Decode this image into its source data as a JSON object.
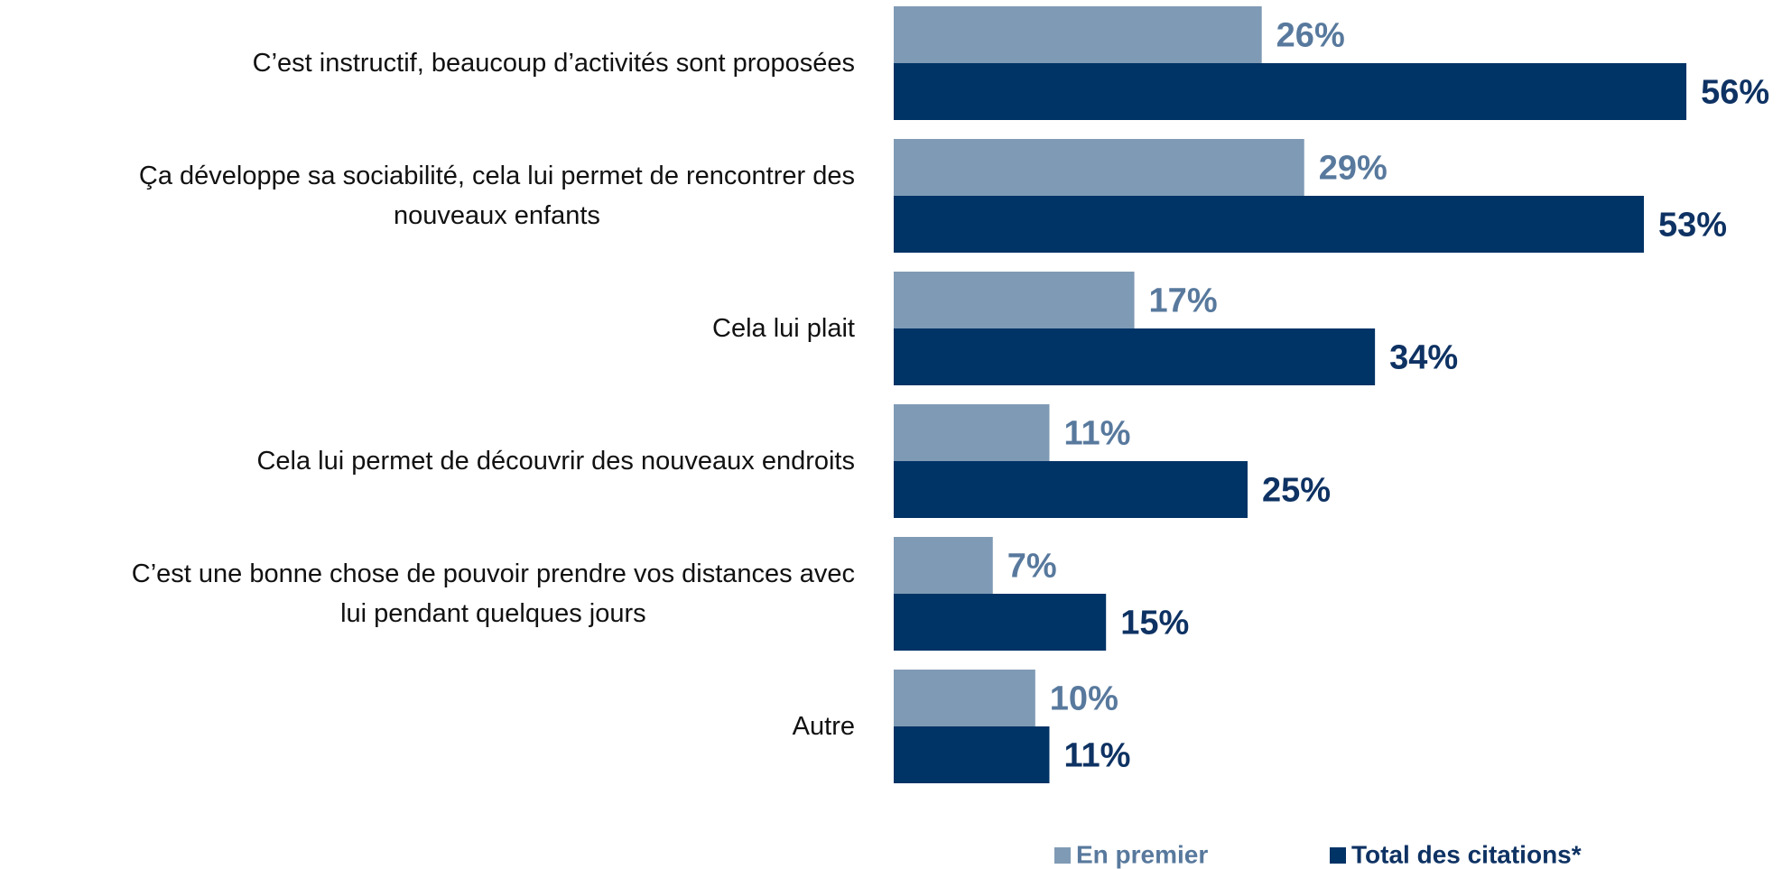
{
  "chart_data": {
    "type": "bar",
    "orientation": "horizontal",
    "categories": [
      "C’est instructif, beaucoup d’activités sont proposées",
      "Ça développe sa sociabilité, cela lui permet de rencontrer des\nnouveaux enfants",
      "Cela lui plait",
      "Cela lui permet de découvrir des nouveaux endroits",
      "C’est une bonne chose de pouvoir prendre vos distances avec\nlui pendant quelques jours",
      "Autre"
    ],
    "series": [
      {
        "name": "En premier",
        "color": "#7f9ab5",
        "label_color": "#58799d",
        "values": [
          26,
          29,
          17,
          11,
          7,
          10
        ],
        "value_labels": [
          "26%",
          "29%",
          "17%",
          "11%",
          "7%",
          "10%"
        ]
      },
      {
        "name": "Total des citations*",
        "color": "#003366",
        "label_color": "#0e3263",
        "values": [
          56,
          53,
          34,
          25,
          15,
          11
        ],
        "value_labels": [
          "56%",
          "53%",
          "34%",
          "25%",
          "15%",
          "11%"
        ]
      }
    ],
    "legend": "bottom"
  }
}
